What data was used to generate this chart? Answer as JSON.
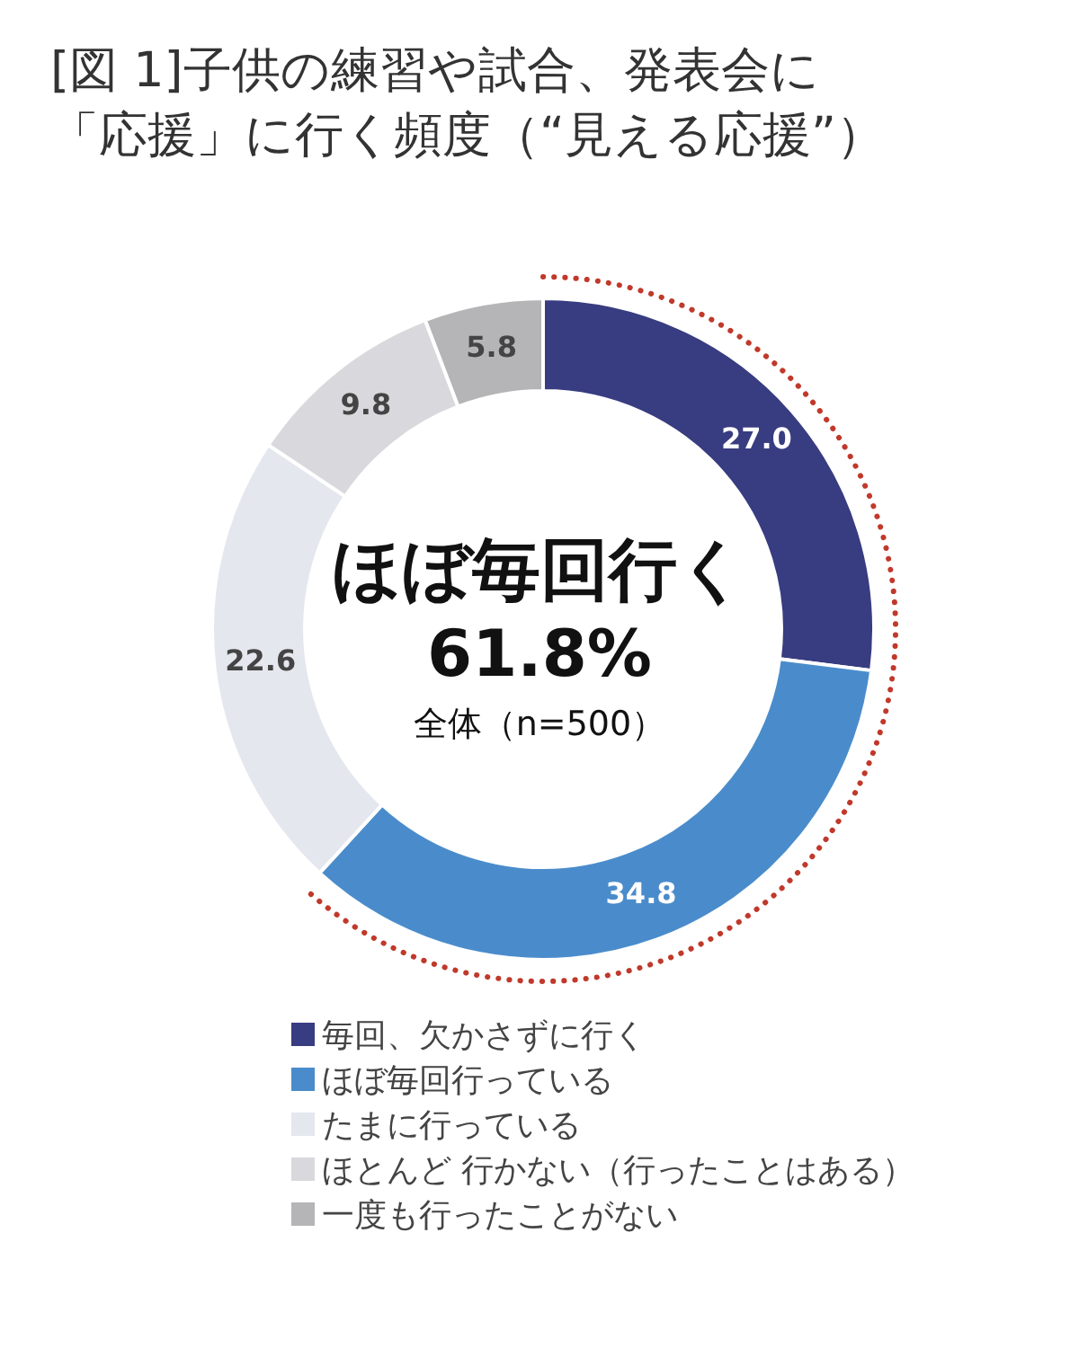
{
  "chart_data": {
    "type": "donut",
    "title": "[図 1]子供の練習や試合、発表会に「応援」に行く頻度（“見える応援”）",
    "categories": [
      "毎回、欠かさずに行く",
      "ほぼ毎回行っている",
      "たまに行っている",
      "ほとんど 行かない（行ったことはある）",
      "一度も行ったことがない"
    ],
    "values": [
      27.0,
      34.8,
      22.6,
      9.8,
      5.8
    ],
    "colors": [
      "#383c80",
      "#4a8ccb",
      "#e4e7ee",
      "#d9d9dd",
      "#b5b5b7"
    ],
    "value_labels": [
      "27.0",
      "34.8",
      "22.6",
      "9.8",
      "5.8"
    ],
    "legend": "bottom",
    "annotations": [
      "ほぼ毎回行く",
      "61.8%",
      "全体（n=500）"
    ]
  }
}
